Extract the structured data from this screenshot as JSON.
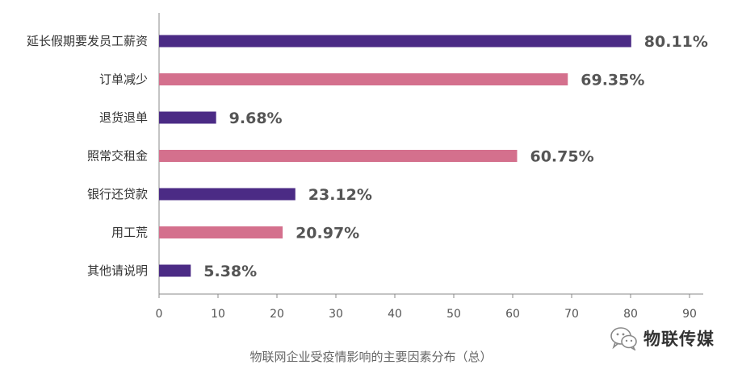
{
  "chart_data": {
    "type": "bar",
    "orientation": "horizontal",
    "categories": [
      "延长假期要发员工薪资",
      "订单减少",
      "退货退单",
      "照常交租金",
      "银行还贷款",
      "用工荒",
      "其他请说明"
    ],
    "values": [
      80.11,
      69.35,
      9.68,
      60.75,
      23.12,
      20.97,
      5.38
    ],
    "value_labels": [
      "80.11%",
      "69.35%",
      "9.68%",
      "60.75%",
      "23.12%",
      "20.97%",
      "5.38%"
    ],
    "bar_colors": [
      "#4b2b85",
      "#d4708d",
      "#4b2b85",
      "#d4708d",
      "#4b2b85",
      "#d4708d",
      "#4b2b85"
    ],
    "xlim": [
      0,
      90
    ],
    "xticks": [
      0,
      10,
      20,
      30,
      40,
      50,
      60,
      70,
      80,
      90
    ],
    "xtick_labels": [
      "0",
      "10",
      "20",
      "30",
      "40",
      "50",
      "60",
      "70",
      "80",
      "90"
    ],
    "grid": false,
    "title": "",
    "xlabel": "",
    "ylabel": ""
  },
  "caption": "物联网企业受疫情影响的主要因素分布（总）",
  "brand": {
    "name": "物联传媒",
    "icon": "wechat-icon",
    "icon_color": "#888888"
  }
}
